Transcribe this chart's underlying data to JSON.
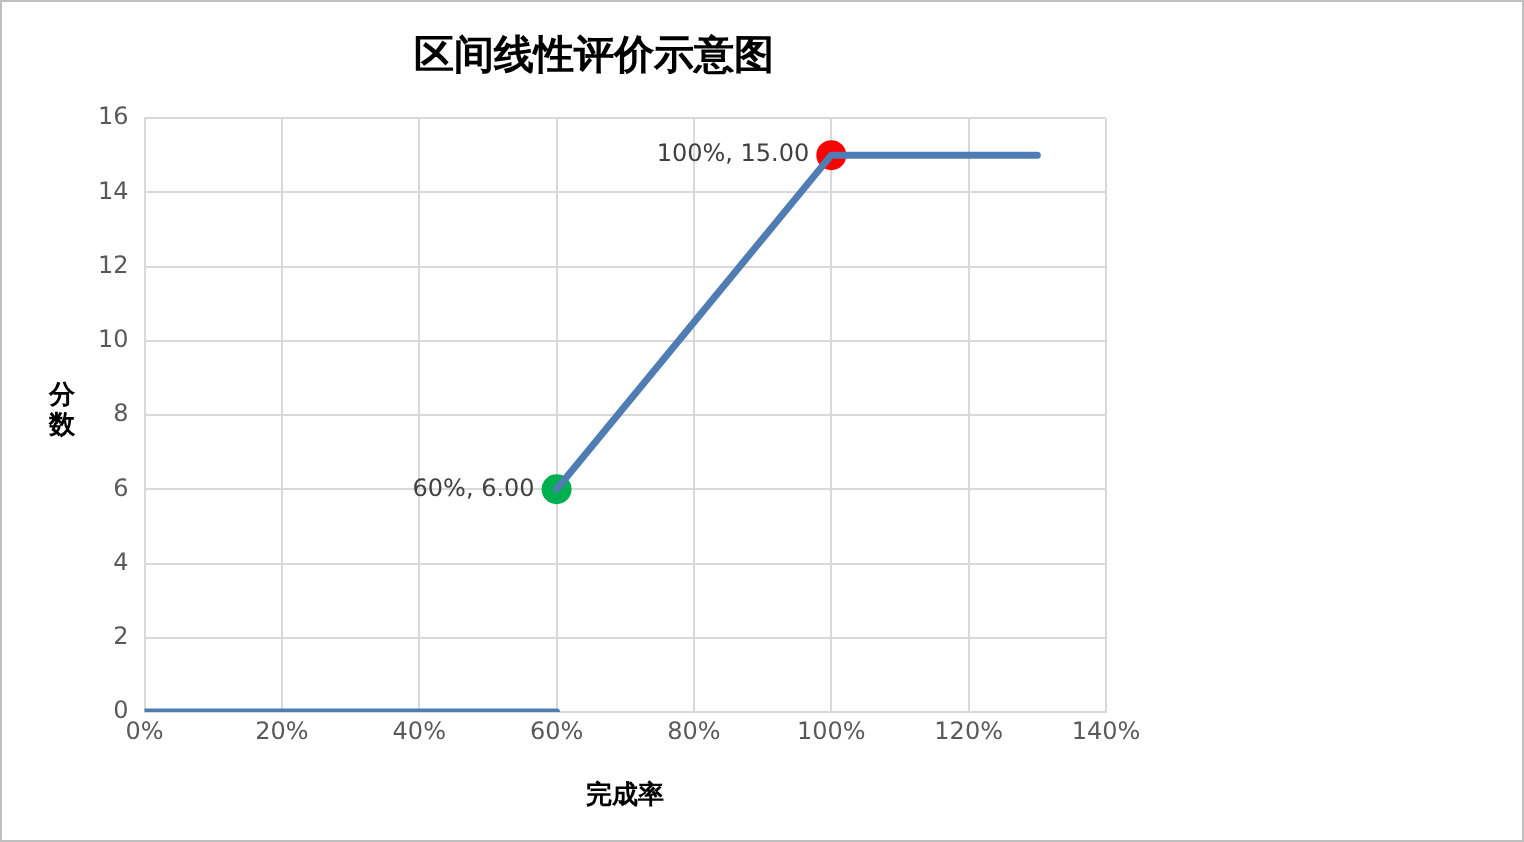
{
  "chart_data": {
    "type": "line",
    "title": "区间线性评价示意图",
    "xlabel": "完成率",
    "ylabel": "分数",
    "xlim": [
      0,
      140
    ],
    "xticks": [
      {
        "value": 0,
        "label": "0%"
      },
      {
        "value": 20,
        "label": "20%"
      },
      {
        "value": 40,
        "label": "40%"
      },
      {
        "value": 60,
        "label": "60%"
      },
      {
        "value": 80,
        "label": "80%"
      },
      {
        "value": 100,
        "label": "100%"
      },
      {
        "value": 120,
        "label": "120%"
      },
      {
        "value": 140,
        "label": "140%"
      }
    ],
    "ylim": [
      0,
      16
    ],
    "yticks": [
      0,
      2,
      4,
      6,
      8,
      10,
      12,
      14,
      16
    ],
    "grid": true,
    "legend": false,
    "marker": "none",
    "series": [
      {
        "color": "#4f7db3",
        "x": [
          0,
          60
        ],
        "values": [
          0,
          0
        ]
      },
      {
        "color": "#4f7db3",
        "x": [
          60,
          100,
          130
        ],
        "values": [
          6,
          15,
          15
        ]
      },
      {
        "type": "scatter",
        "marker": "circle",
        "x": [
          60,
          100
        ],
        "values": [
          6,
          15
        ],
        "colors": [
          "#00b050",
          "#ff0000"
        ],
        "value_labels": [
          "60%, 6.00",
          "100%, 15.00"
        ]
      }
    ]
  }
}
